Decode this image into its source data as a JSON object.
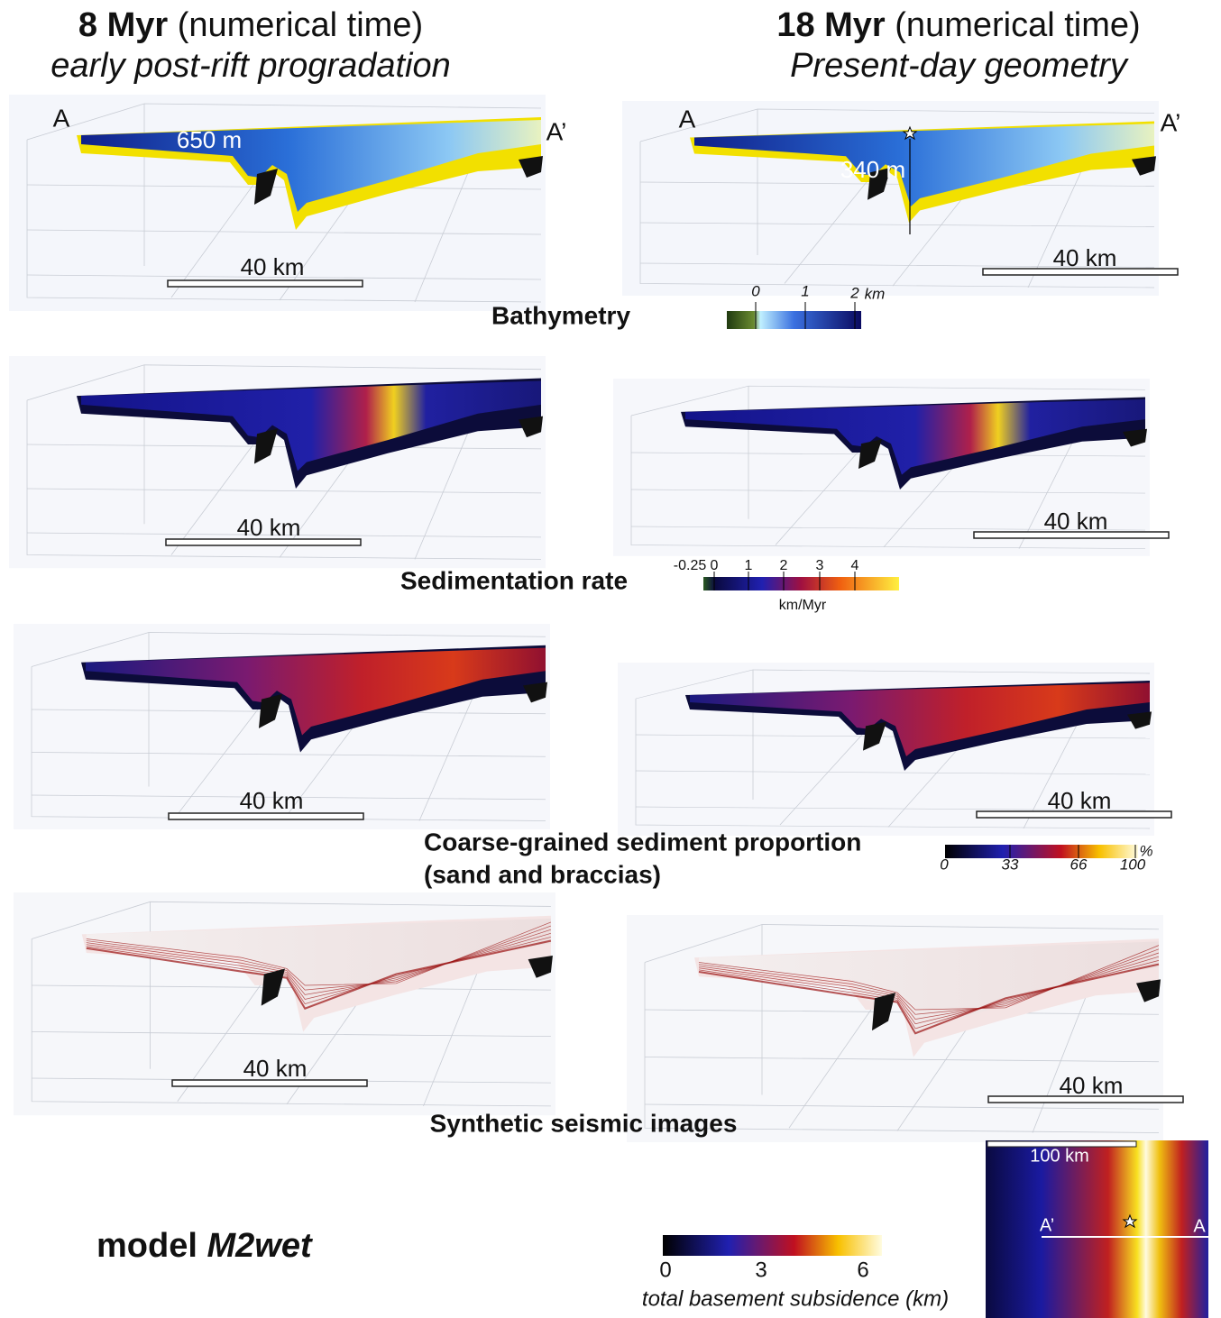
{
  "headers": [
    {
      "time": "8 Myr",
      "time_note": "(numerical time)",
      "stage": "early post-rift progradation"
    },
    {
      "time": "18 Myr",
      "time_note": "(numerical time)",
      "stage": "Present-day geometry"
    }
  ],
  "rows": [
    {
      "title": "Bathymetry",
      "panels": [
        {
          "start": "A",
          "end": "A’",
          "depth": "650 m",
          "scale_bar": "40 km"
        },
        {
          "start": "A",
          "end": "A’",
          "depth": "340 m",
          "scale_bar": "40 km"
        }
      ],
      "colorbar": {
        "ticks": [
          "0",
          "1",
          "2"
        ],
        "unit": "km"
      }
    },
    {
      "title": "Sedimentation rate",
      "panels": [
        {
          "scale_bar": "40 km"
        },
        {
          "scale_bar": "40 km"
        }
      ],
      "colorbar": {
        "ticks": [
          "-0.25",
          "0",
          "1",
          "2",
          "3",
          "4"
        ],
        "unit": "km/Myr"
      }
    },
    {
      "title": "Coarse-grained sediment proportion",
      "subtitle": "(sand and braccias)",
      "panels": [
        {
          "scale_bar": "40 km"
        },
        {
          "scale_bar": "40 km"
        }
      ],
      "colorbar": {
        "ticks": [
          "0",
          "33",
          "66",
          "100"
        ],
        "unit": "%"
      }
    },
    {
      "title": "Synthetic seismic images",
      "panels": [
        {
          "scale_bar": "40 km"
        },
        {
          "scale_bar": "40 km"
        }
      ]
    }
  ],
  "footer": {
    "model_prefix": "model",
    "model_name": "M2wet",
    "colorbar": {
      "ticks": [
        "0",
        "3",
        "6"
      ],
      "label": "total basement subsidence (km)"
    },
    "map": {
      "scale_bar": "100 km",
      "start": "A’",
      "end": "A"
    }
  }
}
